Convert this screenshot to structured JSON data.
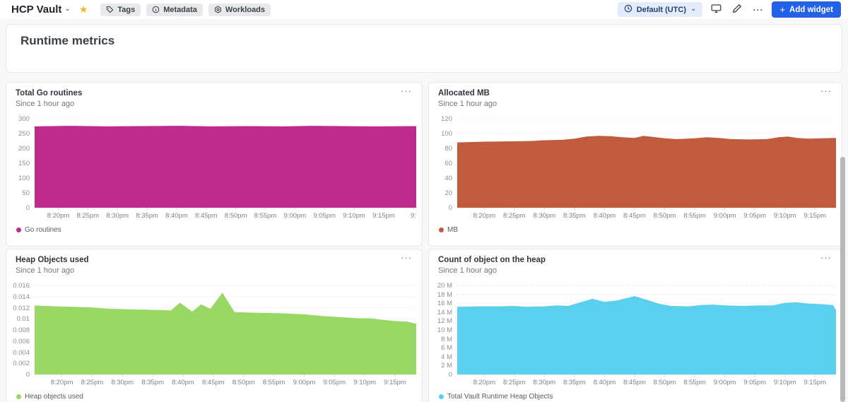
{
  "header": {
    "app_title": "HCP Vault",
    "nav_pills": [
      {
        "label": "Tags",
        "icon": "tag-icon"
      },
      {
        "label": "Metadata",
        "icon": "info-icon"
      },
      {
        "label": "Workloads",
        "icon": "workloads-icon"
      }
    ],
    "timezone_selector": {
      "label": "Default (UTC)",
      "icon": "clock-icon"
    },
    "add_widget_label": "Add widget",
    "accent_color": "#2361e7"
  },
  "icons": {
    "chevron_down": "⌄",
    "star": "★",
    "ellipsis": "···",
    "plus": "+"
  },
  "page": {
    "section_title": "Runtime metrics"
  },
  "chart_data": [
    {
      "type": "area",
      "title": "Total Go routines",
      "subtitle": "Since 1 hour ago",
      "legend": "Go routines",
      "color": "#bf2b8d",
      "ylim": [
        0,
        300
      ],
      "ytick_values": [
        300,
        250,
        200,
        150,
        100,
        50,
        0
      ],
      "ytick_labels": [
        "300",
        "250",
        "200",
        "150",
        "100",
        "50",
        "0"
      ],
      "x_range": [
        16,
        80.5
      ],
      "xtick_minutes": [
        20,
        25,
        30,
        35,
        40,
        45,
        50,
        55,
        60,
        65,
        70,
        75,
        80
      ],
      "xtick_labels": [
        "8:20pm",
        "8:25pm",
        "8:30pm",
        "8:35pm",
        "8:40pm",
        "8:45pm",
        "8:50pm",
        "8:55pm",
        "9:00pm",
        "9:05pm",
        "9:10pm",
        "9:15pm",
        "9:"
      ],
      "points": [
        [
          16,
          274
        ],
        [
          22,
          276
        ],
        [
          28,
          274
        ],
        [
          34,
          275
        ],
        [
          40,
          276
        ],
        [
          46,
          274
        ],
        [
          52,
          275
        ],
        [
          58,
          274
        ],
        [
          63,
          276
        ],
        [
          68,
          275
        ],
        [
          74,
          274
        ],
        [
          80.5,
          275
        ]
      ]
    },
    {
      "type": "area",
      "title": "Allocated MB",
      "subtitle": "Since 1 hour ago",
      "legend": "MB",
      "color": "#c05c3d",
      "ylim": [
        0,
        120
      ],
      "ytick_values": [
        120,
        100,
        80,
        60,
        40,
        20,
        0
      ],
      "ytick_labels": [
        "120",
        "100",
        "80",
        "60",
        "40",
        "20",
        "0"
      ],
      "x_range": [
        15.5,
        78.5
      ],
      "xtick_minutes": [
        20,
        25,
        30,
        35,
        40,
        45,
        50,
        55,
        60,
        65,
        70,
        75
      ],
      "xtick_labels": [
        "8:20pm",
        "8:25pm",
        "8:30pm",
        "8:35pm",
        "8:40pm",
        "8:45pm",
        "8:50pm",
        "8:55pm",
        "9:00pm",
        "9:05pm",
        "9:10pm",
        "9:15pm"
      ],
      "points": [
        [
          15.5,
          88
        ],
        [
          20,
          89
        ],
        [
          25,
          89.5
        ],
        [
          28,
          90
        ],
        [
          30,
          91
        ],
        [
          33,
          91.5
        ],
        [
          35,
          93
        ],
        [
          37,
          96
        ],
        [
          39,
          97
        ],
        [
          41,
          96.5
        ],
        [
          43,
          95
        ],
        [
          45,
          94
        ],
        [
          46.5,
          97
        ],
        [
          48,
          95.5
        ],
        [
          50,
          93.5
        ],
        [
          52,
          92.5
        ],
        [
          55,
          93.5
        ],
        [
          57,
          95
        ],
        [
          59,
          94
        ],
        [
          61,
          92.5
        ],
        [
          64,
          92
        ],
        [
          67,
          92.5
        ],
        [
          69,
          95
        ],
        [
          70.5,
          96
        ],
        [
          72,
          94
        ],
        [
          74,
          93
        ],
        [
          76,
          93.5
        ],
        [
          78.5,
          94
        ]
      ]
    },
    {
      "type": "area",
      "title": "Heap Objects used",
      "subtitle": "Since 1 hour ago",
      "legend": "Heap objects used",
      "color": "#99d865",
      "ylim": [
        0,
        0.016
      ],
      "ytick_values": [
        0.016,
        0.014,
        0.012,
        0.01,
        0.008,
        0.006,
        0.004,
        0.002,
        0
      ],
      "ytick_labels": [
        "0.016",
        "0.014",
        "0.012",
        "0.01",
        "0.008",
        "0.006",
        "0.004",
        "0.002",
        "0"
      ],
      "x_range": [
        15.5,
        78.5
      ],
      "xtick_minutes": [
        20,
        25,
        30,
        35,
        40,
        45,
        50,
        55,
        60,
        65,
        70,
        75
      ],
      "xtick_labels": [
        "8:20pm",
        "8:25pm",
        "8:30pm",
        "8:35pm",
        "8:40pm",
        "8:45pm",
        "8:50pm",
        "8:55pm",
        "9:00pm",
        "9:05pm",
        "9:10pm",
        "9:15pm"
      ],
      "points": [
        [
          15.5,
          0.0124
        ],
        [
          20,
          0.0122
        ],
        [
          24,
          0.0121
        ],
        [
          28,
          0.0118
        ],
        [
          32,
          0.0117
        ],
        [
          36,
          0.0116
        ],
        [
          38,
          0.0115
        ],
        [
          39.5,
          0.0129
        ],
        [
          41.5,
          0.0113
        ],
        [
          43,
          0.0126
        ],
        [
          44.5,
          0.0118
        ],
        [
          46.5,
          0.0147
        ],
        [
          48.5,
          0.0112
        ],
        [
          52,
          0.0111
        ],
        [
          56,
          0.011
        ],
        [
          60,
          0.0108
        ],
        [
          63,
          0.0105
        ],
        [
          66,
          0.0103
        ],
        [
          69,
          0.0101
        ],
        [
          71,
          0.0101
        ],
        [
          73,
          0.0098
        ],
        [
          75,
          0.0096
        ],
        [
          77,
          0.0095
        ],
        [
          78.5,
          0.0091
        ]
      ]
    },
    {
      "type": "area",
      "title": "Count of object on the heap",
      "subtitle": "Since 1 hour ago",
      "legend": "Total Vault Runtime Heap Objects",
      "color": "#5bcfee",
      "ylim": [
        0,
        20
      ],
      "unit": "M",
      "ytick_values": [
        20,
        18,
        16,
        14,
        12,
        10,
        8,
        6,
        4,
        2,
        0
      ],
      "ytick_labels": [
        "20 M",
        "18 M",
        "16 M",
        "14 M",
        "12 M",
        "10 M",
        "8 M",
        "6 M",
        "4 M",
        "2 M",
        "0"
      ],
      "x_range": [
        15.5,
        78.5
      ],
      "xtick_minutes": [
        20,
        25,
        30,
        35,
        40,
        45,
        50,
        55,
        60,
        65,
        70,
        75
      ],
      "xtick_labels": [
        "8:20pm",
        "8:25pm",
        "8:30pm",
        "8:35pm",
        "8:40pm",
        "8:45pm",
        "8:50pm",
        "8:55pm",
        "9:00pm",
        "9:05pm",
        "9:10pm",
        "9:15pm"
      ],
      "points": [
        [
          15.5,
          15.2
        ],
        [
          19,
          15.3
        ],
        [
          22,
          15.3
        ],
        [
          25,
          15.4
        ],
        [
          27,
          15.2
        ],
        [
          30,
          15.3
        ],
        [
          32,
          15.5
        ],
        [
          34,
          15.4
        ],
        [
          36,
          16.2
        ],
        [
          38,
          17.0
        ],
        [
          40,
          16.3
        ],
        [
          42,
          16.6
        ],
        [
          45,
          17.6
        ],
        [
          47,
          16.8
        ],
        [
          49,
          15.9
        ],
        [
          51,
          15.4
        ],
        [
          54,
          15.3
        ],
        [
          56,
          15.6
        ],
        [
          58,
          15.7
        ],
        [
          60,
          15.5
        ],
        [
          63,
          15.4
        ],
        [
          66,
          15.5
        ],
        [
          68,
          15.5
        ],
        [
          70,
          16.1
        ],
        [
          72,
          16.2
        ],
        [
          74,
          15.9
        ],
        [
          76,
          15.8
        ],
        [
          78,
          15.6
        ],
        [
          78.5,
          14.5
        ]
      ]
    }
  ]
}
